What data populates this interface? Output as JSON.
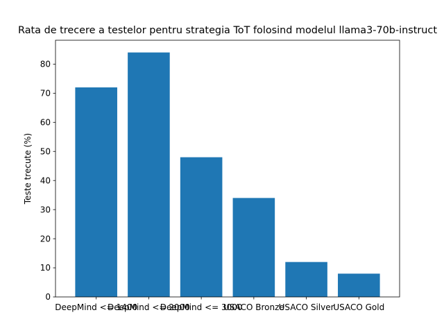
{
  "chart_data": {
    "type": "bar",
    "title": "Rata de trecere a testelor pentru strategia ToT folosind modelul llama3-70b-instruct",
    "xlabel": "",
    "ylabel": "Teste trecute (%)",
    "categories": [
      "DeepMind <= 1400",
      "DeepMind <= 2000",
      "DeepMind <= 3000",
      "USACO Bronze",
      "USACO Silver",
      "USACO Gold"
    ],
    "values": [
      72,
      84,
      48,
      34,
      12,
      8
    ],
    "ylim": [
      0,
      88.2
    ],
    "yticks": [
      0,
      10,
      20,
      30,
      40,
      50,
      60,
      70,
      80
    ],
    "bar_color": "#1f77b4",
    "grid": false,
    "legend": "none"
  }
}
